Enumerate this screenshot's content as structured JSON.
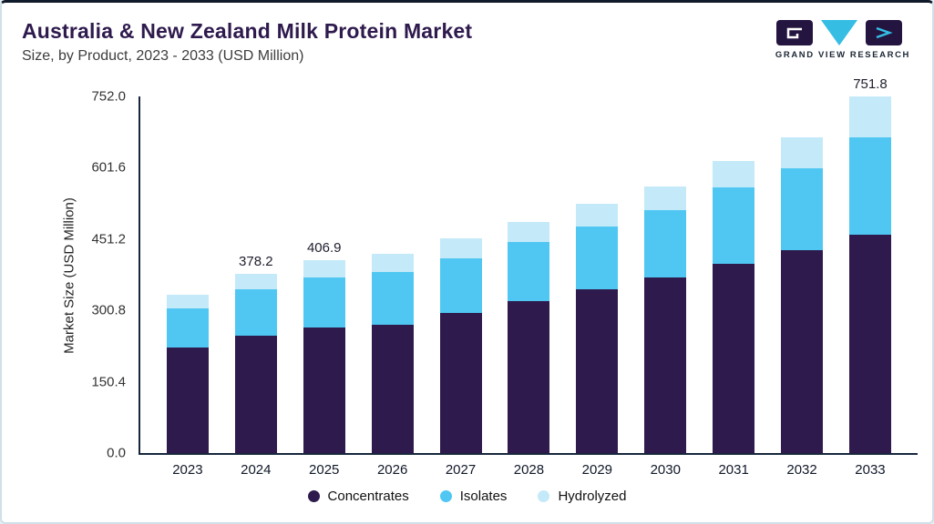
{
  "header": {
    "title": "Australia & New Zealand Milk Protein Market",
    "subtitle": "Size, by Product, 2023 - 2033 (USD Million)",
    "logo": {
      "text": "GRAND VIEW RESEARCH"
    }
  },
  "colors": {
    "title": "#2e1a4d",
    "accent_cyan": "#35bde4",
    "logo_dark": "#241540",
    "axis": "#16263c",
    "card_border": "#cfe0ea",
    "top_bar": "#0f1a2b"
  },
  "chart_data": {
    "type": "bar",
    "stacked": true,
    "title": "Australia & New Zealand Milk Protein Market Size, by Product, 2023 - 2033 (USD Million)",
    "xlabel": "",
    "ylabel": "Market Size (USD Million)",
    "categories": [
      "2023",
      "2024",
      "2025",
      "2026",
      "2027",
      "2028",
      "2029",
      "2030",
      "2031",
      "2032",
      "2033"
    ],
    "series": [
      {
        "name": "Concentrates",
        "color": "#2e1a4d",
        "values": [
          222,
          248,
          264,
          270,
          295,
          320,
          345,
          370,
          400,
          428,
          460
        ]
      },
      {
        "name": "Isolates",
        "color": "#4fc7f2",
        "values": [
          84,
          98,
          107,
          112,
          115,
          125,
          132,
          143,
          160,
          172,
          205
        ]
      },
      {
        "name": "Hydrolyzed",
        "color": "#c4e9f9",
        "values": [
          28,
          32.2,
          35.9,
          38,
          42,
          43,
          48,
          50,
          56,
          66,
          86.8
        ]
      }
    ],
    "totals": [
      334,
      378.2,
      406.9,
      420,
      452,
      488,
      525,
      563,
      616,
      666,
      751.8
    ],
    "bar_total_labels": [
      "",
      "378.2",
      "406.9",
      "",
      "",
      "",
      "",
      "",
      "",
      "",
      "751.8"
    ],
    "y_ticks": [
      "0.0",
      "150.4",
      "300.8",
      "451.2",
      "601.6",
      "752.0"
    ],
    "ylim": [
      0,
      752
    ],
    "grid": false,
    "legend": [
      "Concentrates",
      "Isolates",
      "Hydrolyzed"
    ],
    "legend_position": "bottom"
  }
}
